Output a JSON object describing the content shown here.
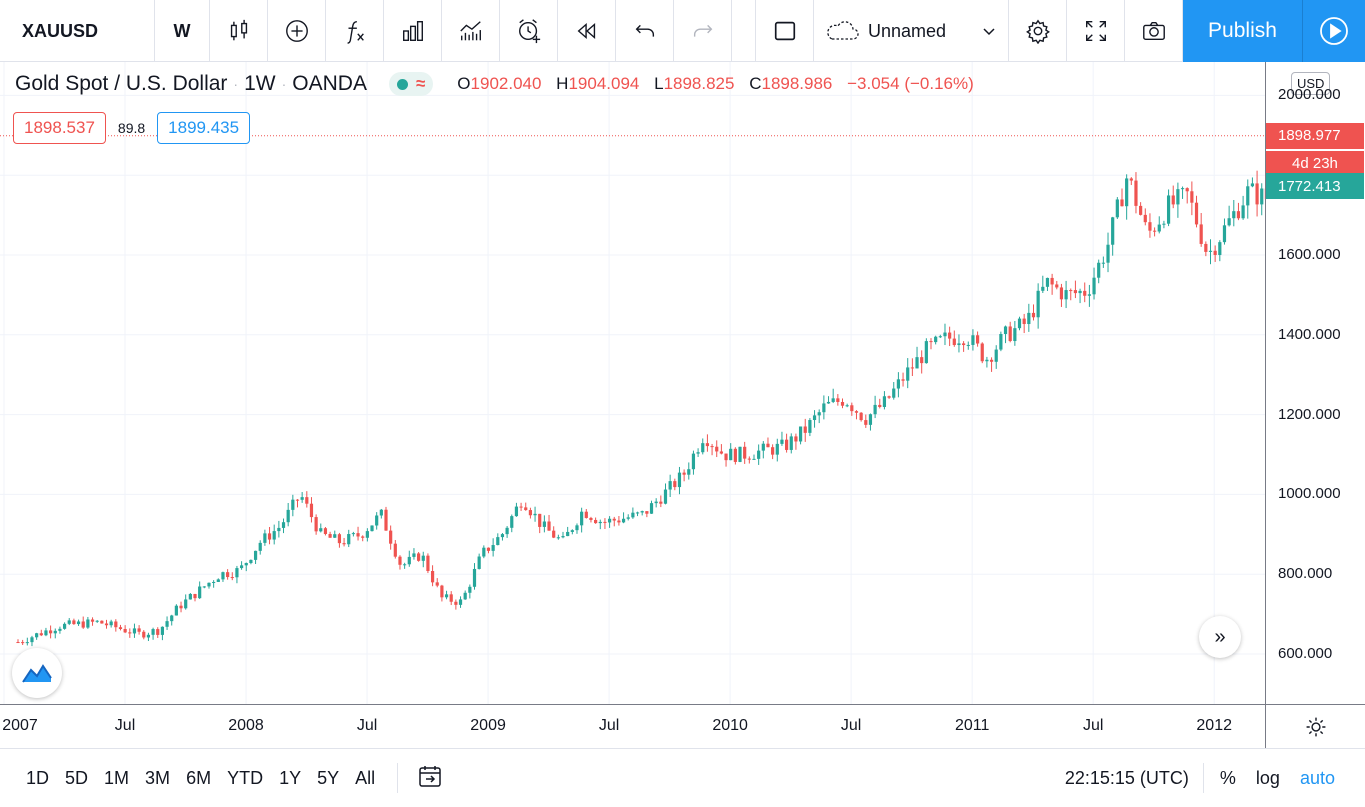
{
  "toolbar": {
    "symbol": "XAUUSD",
    "interval": "W",
    "layout_name": "Unnamed",
    "publish_label": "Publish"
  },
  "legend": {
    "title": "Gold Spot / U.S. Dollar",
    "interval": "1W",
    "source": "OANDA",
    "o_key": "O",
    "o_val": "1902.040",
    "h_key": "H",
    "h_val": "1904.094",
    "l_key": "L",
    "l_val": "1898.825",
    "c_key": "C",
    "c_val": "1898.986",
    "change": "−3.054 (−0.16%)"
  },
  "quote": {
    "sell": "1898.537",
    "spread": "89.8",
    "buy": "1899.435"
  },
  "price_axis": {
    "currency": "USD",
    "last_price_tag": "1898.977",
    "countdown_tag": "4d 23h",
    "crosshair_tag": "1772.413",
    "ticks": [
      "2000.000",
      "1600.000",
      "1400.000",
      "1200.000",
      "1000.000",
      "800.000",
      "600.000"
    ]
  },
  "time_axis": {
    "labels": [
      "2007",
      "Jul",
      "2008",
      "Jul",
      "2009",
      "Jul",
      "2010",
      "Jul",
      "2011",
      "Jul",
      "2012"
    ]
  },
  "bottombar": {
    "ranges": [
      "1D",
      "5D",
      "1M",
      "3M",
      "6M",
      "YTD",
      "1Y",
      "5Y",
      "All"
    ],
    "clock": "22:15:15 (UTC)",
    "pct": "%",
    "log": "log",
    "auto": "auto"
  },
  "colors": {
    "up": "#26a69a",
    "down": "#ef5350",
    "accent": "#2196f3"
  },
  "chart_data": {
    "type": "candlestick",
    "title": "Gold Spot / U.S. Dollar",
    "xlabel": "",
    "ylabel": "",
    "ylim": [
      450,
      2060
    ],
    "x_range": [
      "2007-01",
      "2012-03"
    ],
    "grid": true,
    "anchors": [
      {
        "date": "2007-01",
        "price": 630
      },
      {
        "date": "2007-03",
        "price": 670
      },
      {
        "date": "2007-05",
        "price": 680
      },
      {
        "date": "2007-07",
        "price": 650
      },
      {
        "date": "2007-08",
        "price": 660
      },
      {
        "date": "2007-09",
        "price": 720
      },
      {
        "date": "2007-11",
        "price": 800
      },
      {
        "date": "2007-12",
        "price": 810
      },
      {
        "date": "2008-01",
        "price": 880
      },
      {
        "date": "2008-02",
        "price": 920
      },
      {
        "date": "2008-03",
        "price": 1000
      },
      {
        "date": "2008-04",
        "price": 900
      },
      {
        "date": "2008-05",
        "price": 880
      },
      {
        "date": "2008-06",
        "price": 900
      },
      {
        "date": "2008-07",
        "price": 950
      },
      {
        "date": "2008-08",
        "price": 820
      },
      {
        "date": "2008-09",
        "price": 850
      },
      {
        "date": "2008-10",
        "price": 740
      },
      {
        "date": "2008-11",
        "price": 730
      },
      {
        "date": "2008-12",
        "price": 850
      },
      {
        "date": "2009-01",
        "price": 900
      },
      {
        "date": "2009-02",
        "price": 990
      },
      {
        "date": "2009-03",
        "price": 920
      },
      {
        "date": "2009-04",
        "price": 880
      },
      {
        "date": "2009-05",
        "price": 960
      },
      {
        "date": "2009-06",
        "price": 930
      },
      {
        "date": "2009-07",
        "price": 940
      },
      {
        "date": "2009-08",
        "price": 950
      },
      {
        "date": "2009-09",
        "price": 1000
      },
      {
        "date": "2009-10",
        "price": 1050
      },
      {
        "date": "2009-11",
        "price": 1150
      },
      {
        "date": "2009-12",
        "price": 1100
      },
      {
        "date": "2010-01",
        "price": 1100
      },
      {
        "date": "2010-02",
        "price": 1110
      },
      {
        "date": "2010-03",
        "price": 1120
      },
      {
        "date": "2010-04",
        "price": 1160
      },
      {
        "date": "2010-05",
        "price": 1220
      },
      {
        "date": "2010-06",
        "price": 1240
      },
      {
        "date": "2010-07",
        "price": 1190
      },
      {
        "date": "2010-08",
        "price": 1230
      },
      {
        "date": "2010-09",
        "price": 1300
      },
      {
        "date": "2010-10",
        "price": 1360
      },
      {
        "date": "2010-11",
        "price": 1390
      },
      {
        "date": "2010-12",
        "price": 1400
      },
      {
        "date": "2011-01",
        "price": 1340
      },
      {
        "date": "2011-02",
        "price": 1400
      },
      {
        "date": "2011-03",
        "price": 1430
      },
      {
        "date": "2011-04",
        "price": 1530
      },
      {
        "date": "2011-05",
        "price": 1500
      },
      {
        "date": "2011-06",
        "price": 1510
      },
      {
        "date": "2011-07",
        "price": 1620
      },
      {
        "date": "2011-08",
        "price": 1800
      },
      {
        "date": "2011-09",
        "price": 1650
      },
      {
        "date": "2011-10",
        "price": 1720
      },
      {
        "date": "2011-11",
        "price": 1750
      },
      {
        "date": "2011-12",
        "price": 1600
      },
      {
        "date": "2012-01",
        "price": 1680
      },
      {
        "date": "2012-02",
        "price": 1760
      },
      {
        "date": "2012-03",
        "price": 1740
      }
    ]
  }
}
